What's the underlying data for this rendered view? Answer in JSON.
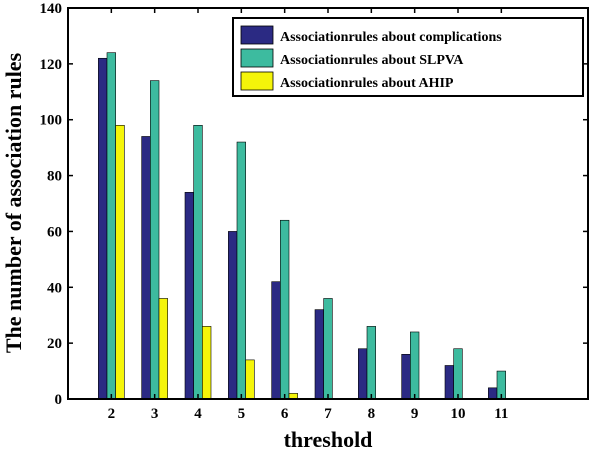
{
  "chart_data": {
    "type": "bar",
    "title": "",
    "xlabel": "threshold",
    "ylabel": "The number of association rules",
    "categories": [
      "2",
      "3",
      "4",
      "5",
      "6",
      "7",
      "8",
      "9",
      "10",
      "11"
    ],
    "xlim": [
      1,
      13
    ],
    "ylim": [
      0,
      140
    ],
    "yticks": [
      "0",
      "20",
      "40",
      "60",
      "80",
      "100",
      "120",
      "140"
    ],
    "grid": false,
    "legend_position": "top-right",
    "series": [
      {
        "name": "Associationrules about complications",
        "color": "#2b2a83",
        "values": [
          122,
          94,
          74,
          60,
          42,
          32,
          18,
          16,
          12,
          4
        ]
      },
      {
        "name": "Associationrules about SLPVA",
        "color": "#3dbb9f",
        "values": [
          124,
          114,
          98,
          92,
          64,
          36,
          26,
          24,
          18,
          10
        ]
      },
      {
        "name": "Associationrules about AHIP",
        "color": "#f5f50a",
        "values": [
          98,
          36,
          26,
          14,
          2,
          0,
          0,
          0,
          0,
          0
        ]
      }
    ]
  }
}
